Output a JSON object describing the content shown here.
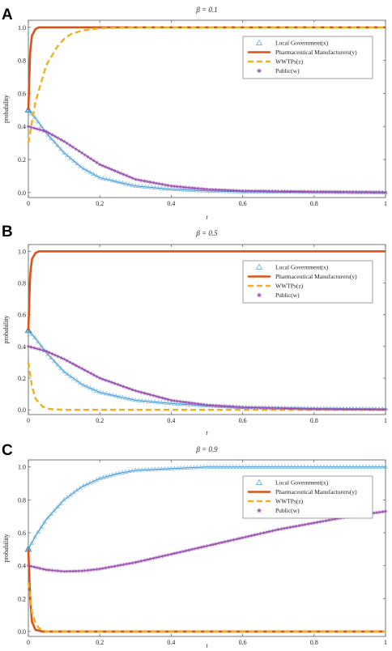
{
  "chart_data": [
    {
      "panel": "A",
      "type": "line",
      "title": "β = 0.1",
      "xlabel": "t",
      "ylabel": "probability",
      "xlim": [
        0,
        1
      ],
      "ylim": [
        0,
        1
      ],
      "xticks": [
        "0",
        "0.2",
        "0.4",
        "0.6",
        "0.8",
        "1"
      ],
      "yticks": [
        "0.0",
        "0.2",
        "0.4",
        "0.6",
        "0.8",
        "1.0"
      ],
      "legend_position": "top-right",
      "series": [
        {
          "name": "Local Government(x)",
          "color": "#6fb7e6",
          "style": "triangle-markers",
          "x": [
            0,
            0.02,
            0.05,
            0.1,
            0.15,
            0.2,
            0.3,
            0.4,
            0.5,
            0.6,
            0.8,
            1.0
          ],
          "y": [
            0.5,
            0.45,
            0.36,
            0.24,
            0.15,
            0.09,
            0.04,
            0.02,
            0.01,
            0.005,
            0.002,
            0.0
          ]
        },
        {
          "name": "Pharmaceutical Manufacturers(y)",
          "color": "#d95319",
          "style": "solid",
          "x": [
            0,
            0.005,
            0.01,
            0.02,
            0.03,
            0.05,
            0.1,
            0.2,
            0.5,
            1.0
          ],
          "y": [
            0.5,
            0.85,
            0.95,
            0.99,
            1.0,
            1.0,
            1.0,
            1.0,
            1.0,
            1.0
          ]
        },
        {
          "name": "WWTPs(z)",
          "color": "#edb120",
          "style": "dashed",
          "x": [
            0,
            0.02,
            0.05,
            0.08,
            0.1,
            0.12,
            0.15,
            0.2,
            0.3,
            0.5,
            1.0
          ],
          "y": [
            0.3,
            0.55,
            0.77,
            0.88,
            0.93,
            0.96,
            0.98,
            0.995,
            1.0,
            1.0,
            1.0
          ]
        },
        {
          "name": "Public(w)",
          "color": "#9b4fb0",
          "style": "star-markers",
          "x": [
            0,
            0.05,
            0.1,
            0.15,
            0.2,
            0.3,
            0.4,
            0.5,
            0.6,
            0.8,
            1.0
          ],
          "y": [
            0.4,
            0.37,
            0.31,
            0.24,
            0.17,
            0.08,
            0.04,
            0.02,
            0.01,
            0.005,
            0.002
          ]
        }
      ]
    },
    {
      "panel": "B",
      "type": "line",
      "title": "β = 0.5",
      "xlabel": "t",
      "ylabel": "probability",
      "xlim": [
        0,
        1
      ],
      "ylim": [
        0,
        1
      ],
      "xticks": [
        "0",
        "0.2",
        "0.4",
        "0.6",
        "0.8",
        "1"
      ],
      "yticks": [
        "0.0",
        "0.2",
        "0.4",
        "0.6",
        "0.8",
        "1.0"
      ],
      "legend_position": "top-right",
      "series": [
        {
          "name": "Local Government(x)",
          "color": "#6fb7e6",
          "style": "triangle-markers",
          "x": [
            0,
            0.02,
            0.05,
            0.1,
            0.15,
            0.2,
            0.3,
            0.4,
            0.5,
            0.6,
            0.8,
            1.0
          ],
          "y": [
            0.5,
            0.45,
            0.36,
            0.24,
            0.16,
            0.11,
            0.06,
            0.04,
            0.025,
            0.015,
            0.008,
            0.005
          ]
        },
        {
          "name": "Pharmaceutical Manufacturers(y)",
          "color": "#d95319",
          "style": "solid",
          "x": [
            0,
            0.005,
            0.01,
            0.02,
            0.03,
            0.05,
            0.1,
            0.5,
            1.0
          ],
          "y": [
            0.5,
            0.85,
            0.95,
            0.99,
            1.0,
            1.0,
            1.0,
            1.0,
            1.0
          ]
        },
        {
          "name": "WWTPs(z)",
          "color": "#edb120",
          "style": "dashed",
          "x": [
            0,
            0.01,
            0.02,
            0.04,
            0.06,
            0.1,
            0.2,
            0.5,
            1.0
          ],
          "y": [
            0.3,
            0.15,
            0.07,
            0.02,
            0.005,
            0.0,
            0.0,
            0.0,
            0.0
          ]
        },
        {
          "name": "Public(w)",
          "color": "#9b4fb0",
          "style": "star-markers",
          "x": [
            0,
            0.05,
            0.1,
            0.15,
            0.2,
            0.3,
            0.4,
            0.5,
            0.6,
            0.8,
            1.0
          ],
          "y": [
            0.4,
            0.37,
            0.32,
            0.26,
            0.2,
            0.12,
            0.06,
            0.03,
            0.015,
            0.005,
            0.002
          ]
        }
      ]
    },
    {
      "panel": "C",
      "type": "line",
      "title": "β = 0.9",
      "xlabel": "t",
      "ylabel": "probability",
      "xlim": [
        0,
        1
      ],
      "ylim": [
        0,
        1
      ],
      "xticks": [
        "0",
        "0.2",
        "0.4",
        "0.6",
        "0.8",
        "1"
      ],
      "yticks": [
        "0.0",
        "0.2",
        "0.4",
        "0.6",
        "0.8",
        "1.0"
      ],
      "legend_position": "top-right",
      "series": [
        {
          "name": "Local Government(x)",
          "color": "#6fb7e6",
          "style": "triangle-markers",
          "x": [
            0,
            0.02,
            0.05,
            0.1,
            0.15,
            0.2,
            0.25,
            0.3,
            0.4,
            0.5,
            0.6,
            0.8,
            1.0
          ],
          "y": [
            0.5,
            0.58,
            0.68,
            0.8,
            0.88,
            0.93,
            0.96,
            0.98,
            0.99,
            1.0,
            1.0,
            1.0,
            1.0
          ]
        },
        {
          "name": "Pharmaceutical Manufacturers(y)",
          "color": "#d95319",
          "style": "solid",
          "x": [
            0,
            0.005,
            0.01,
            0.02,
            0.04,
            0.1,
            0.5,
            1.0
          ],
          "y": [
            0.5,
            0.2,
            0.06,
            0.01,
            0.0,
            0.0,
            0.0,
            0.0
          ]
        },
        {
          "name": "WWTPs(z)",
          "color": "#edb120",
          "style": "dashed",
          "x": [
            0,
            0.005,
            0.01,
            0.02,
            0.03,
            0.05,
            0.1,
            0.5,
            1.0
          ],
          "y": [
            0.3,
            0.2,
            0.12,
            0.05,
            0.02,
            0.0,
            0.0,
            0.0,
            0.0
          ]
        },
        {
          "name": "Public(w)",
          "color": "#9b4fb0",
          "style": "star-markers",
          "x": [
            0,
            0.05,
            0.1,
            0.15,
            0.2,
            0.3,
            0.4,
            0.5,
            0.6,
            0.7,
            0.8,
            0.9,
            1.0
          ],
          "y": [
            0.4,
            0.375,
            0.365,
            0.368,
            0.38,
            0.42,
            0.47,
            0.52,
            0.57,
            0.62,
            0.66,
            0.7,
            0.73
          ]
        }
      ]
    }
  ]
}
